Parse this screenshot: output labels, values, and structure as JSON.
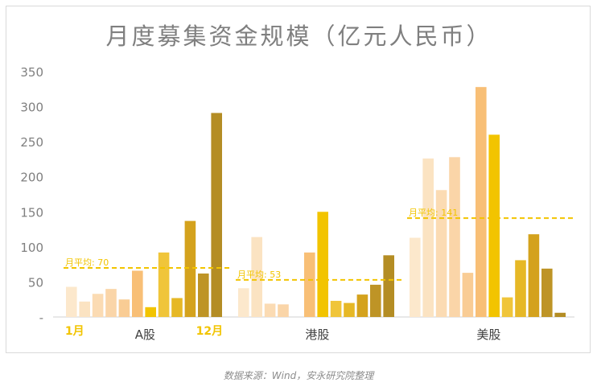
{
  "chart_data": {
    "type": "bar",
    "title": "月度募集资金规模（亿元人民币）",
    "ylim": [
      0,
      350
    ],
    "yticks": [
      "350",
      "300",
      "250",
      "200",
      "150",
      "100",
      "50",
      "-"
    ],
    "grid": false,
    "groups": [
      {
        "name": "A股",
        "values": [
          43,
          22,
          33,
          40,
          25,
          66,
          14,
          92,
          27,
          137,
          62,
          291
        ],
        "colors": [
          "#fce8cc",
          "#fbe3c2",
          "#fbdbb3",
          "#fad5a8",
          "#f9cc94",
          "#f8bf76",
          "#f2c400",
          "#f0c53a",
          "#e6b826",
          "#d4a21d",
          "#be9426",
          "#b48d24"
        ],
        "mean": 70,
        "mean_label": "月平均: 70",
        "month_start_label": "1月",
        "month_end_label": "12月"
      },
      {
        "name": "港股",
        "values": [
          41,
          114,
          19,
          18,
          0,
          92,
          150,
          23,
          20,
          32,
          46,
          88
        ],
        "colors": [
          "#fce8cc",
          "#fbe3c2",
          "#fbdbb3",
          "#fad5a8",
          "#f9cc94",
          "#f8bf76",
          "#f2c400",
          "#f0c53a",
          "#e6b826",
          "#d4a21d",
          "#be9426",
          "#b48d24"
        ],
        "mean": 53,
        "mean_label": "月平均: 53"
      },
      {
        "name": "美股",
        "values": [
          113,
          226,
          181,
          228,
          63,
          328,
          260,
          28,
          81,
          118,
          69,
          6
        ],
        "colors": [
          "#fce8cc",
          "#fbe3c2",
          "#fbdbb3",
          "#fad5a8",
          "#f9cc94",
          "#f8bf76",
          "#f2c400",
          "#f0c53a",
          "#e6b826",
          "#d4a21d",
          "#be9426",
          "#b48d24"
        ],
        "mean": 141,
        "mean_label": "月平均: 141"
      }
    ],
    "mean_line_color": "#f2c400",
    "month_label_color": "#f2c400",
    "axis_text_color": "#7f7f7f"
  },
  "source_note": "数据来源：Wind，安永研究院整理"
}
